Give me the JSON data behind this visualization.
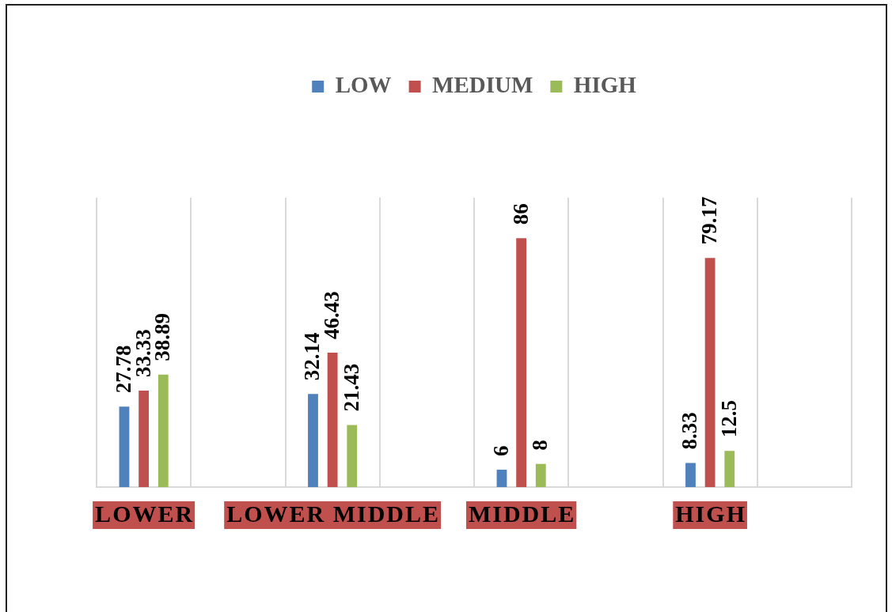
{
  "chart_data": {
    "type": "bar",
    "categories": [
      "LOWER",
      null,
      "LOWER MIDDLE",
      null,
      "MIDDLE",
      null,
      "HIGH",
      null
    ],
    "series": [
      {
        "name": "LOW",
        "color": "#4f81bd",
        "values": [
          27.78,
          null,
          32.14,
          null,
          6,
          null,
          8.33,
          null
        ]
      },
      {
        "name": "MEDIUM",
        "color": "#c0504d",
        "values": [
          33.33,
          null,
          46.43,
          null,
          86,
          null,
          79.17,
          null
        ]
      },
      {
        "name": "HIGH",
        "color": "#9bbb59",
        "values": [
          38.89,
          null,
          21.43,
          null,
          8,
          null,
          12.5,
          null
        ]
      }
    ],
    "ylim": [
      0,
      100
    ],
    "tick_labels": "x",
    "grid": "x",
    "legend": "top",
    "data_labels": true
  }
}
